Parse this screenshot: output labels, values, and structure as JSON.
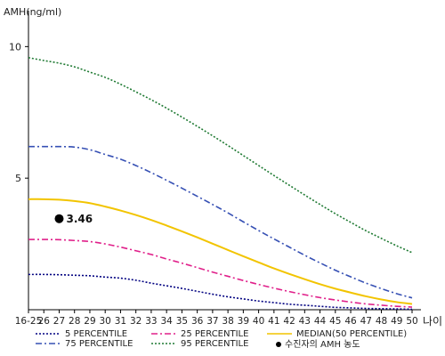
{
  "chart_data": {
    "type": "line",
    "ylabel": "AMH(ng/ml)",
    "xlabel": "나이",
    "x": [
      "16-25",
      "26",
      "27",
      "28",
      "29",
      "30",
      "31",
      "32",
      "33",
      "34",
      "35",
      "36",
      "37",
      "38",
      "39",
      "40",
      "41",
      "42",
      "43",
      "44",
      "45",
      "46",
      "47",
      "48",
      "49",
      "50"
    ],
    "yticks": [
      5,
      10
    ],
    "ylim": [
      0,
      11.5
    ],
    "grid": false,
    "legend_placement": "bottom",
    "series": [
      {
        "name": "5 PERCENTILE",
        "color": "#000080",
        "dash": "2,2",
        "values": [
          1.34,
          1.34,
          1.33,
          1.31,
          1.29,
          1.24,
          1.2,
          1.12,
          1.01,
          0.91,
          0.81,
          0.7,
          0.59,
          0.49,
          0.41,
          0.33,
          0.27,
          0.21,
          0.17,
          0.13,
          0.09,
          0.07,
          0.05,
          0.04,
          0.03,
          0.02
        ]
      },
      {
        "name": "25 PERCENTILE",
        "color": "#e0208a",
        "dash": "7,3,2,3",
        "values": [
          2.67,
          2.67,
          2.66,
          2.63,
          2.59,
          2.5,
          2.38,
          2.24,
          2.1,
          1.93,
          1.77,
          1.6,
          1.43,
          1.27,
          1.11,
          0.96,
          0.82,
          0.69,
          0.57,
          0.46,
          0.37,
          0.29,
          0.22,
          0.17,
          0.13,
          0.1
        ]
      },
      {
        "name": "MEDIAN(50 PERCENTILE)",
        "color": "#f2c400",
        "dash": "",
        "values": [
          4.2,
          4.2,
          4.18,
          4.13,
          4.05,
          3.92,
          3.77,
          3.6,
          3.41,
          3.2,
          2.98,
          2.75,
          2.51,
          2.27,
          2.03,
          1.8,
          1.57,
          1.36,
          1.16,
          0.97,
          0.8,
          0.65,
          0.51,
          0.39,
          0.29,
          0.22
        ]
      },
      {
        "name": "75 PERCENTILE",
        "color": "#3650b4",
        "dash": "7,3,2,3",
        "values": [
          6.2,
          6.2,
          6.2,
          6.18,
          6.08,
          5.9,
          5.72,
          5.48,
          5.21,
          4.92,
          4.62,
          4.31,
          4.0,
          3.68,
          3.34,
          3.01,
          2.69,
          2.38,
          2.07,
          1.78,
          1.5,
          1.25,
          1.01,
          0.8,
          0.61,
          0.45
        ]
      },
      {
        "name": "95 PERCENTILE",
        "color": "#1f7a33",
        "dash": "2,2",
        "values": [
          9.58,
          9.47,
          9.37,
          9.23,
          9.03,
          8.83,
          8.57,
          8.28,
          7.98,
          7.66,
          7.32,
          6.97,
          6.61,
          6.24,
          5.86,
          5.48,
          5.1,
          4.73,
          4.36,
          4.0,
          3.65,
          3.32,
          3.0,
          2.71,
          2.43,
          2.17
        ]
      }
    ],
    "point": {
      "name": "수진자의 AMH 농도",
      "x": "27",
      "y": 3.46,
      "label": "3.46",
      "color": "#000000"
    }
  }
}
